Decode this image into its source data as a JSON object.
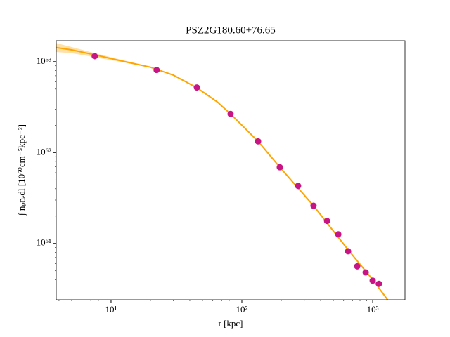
{
  "chart_data": {
    "type": "scatter",
    "title": "PSZ2G180.60+76.65",
    "x_label": "r [kpc]",
    "y_label": "∫ nₚnₑdl [10⁶⁰cm⁻⁵kpc⁻²]",
    "xscale": "log",
    "yscale": "log",
    "xlim": [
      3.81,
      1766
    ],
    "ylim": [
      2.4e+60,
      1.7e+63
    ],
    "xticks": [
      {
        "value": 10,
        "label": "10¹"
      },
      {
        "value": 100,
        "label": "10²"
      },
      {
        "value": 1000,
        "label": "10³"
      }
    ],
    "yticks": [
      {
        "value": 1e+61,
        "label": "10⁶¹"
      },
      {
        "value": 1e+62,
        "label": "10⁶²"
      },
      {
        "value": 1e+63,
        "label": "10⁶³"
      }
    ],
    "xminorticks": [
      4,
      5,
      6,
      7,
      8,
      9,
      20,
      30,
      40,
      50,
      60,
      70,
      80,
      90,
      200,
      300,
      400,
      500,
      600,
      700,
      800,
      900
    ],
    "yminorticks": [
      3e+60,
      4e+60,
      5e+60,
      6e+60,
      7e+60,
      8e+60,
      9e+60,
      2e+61,
      3e+61,
      4e+61,
      5e+61,
      6e+61,
      7e+61,
      8e+61,
      9e+61,
      2e+62,
      3e+62,
      4e+62,
      5e+62,
      6e+62,
      7e+62,
      8e+62,
      9e+62
    ],
    "band": {
      "color": "#ffa500",
      "opacity": 0.35,
      "x": [
        3.81,
        5,
        7.5,
        12,
        20,
        30
      ],
      "upper": [
        1.6e+63,
        1.45e+63,
        1.24e+63,
        1.05e+63,
        8.8e+62,
        7.2e+62
      ],
      "lower": [
        1.28e+63,
        1.24e+63,
        1.12e+63,
        9.9e+62,
        8.6e+62,
        7e+62
      ]
    },
    "series": [
      {
        "style": "line",
        "color": "#ffa500",
        "x": [
          3.81,
          5,
          7.5,
          12,
          20,
          30,
          45,
          65,
          82,
          133,
          195,
          353,
          649,
          1000,
          1300
        ],
        "values": [
          1.43e+63,
          1.35e+63,
          1.19e+63,
          1.02e+63,
          8.7e+62,
          7.1e+62,
          5.2e+62,
          3.6e+62,
          2.66e+62,
          1.33e+62,
          6.9e+61,
          2.6e+61,
          8.5e+60,
          4e+60,
          2.4e+60
        ]
      },
      {
        "style": "markers",
        "color": "#c71585",
        "x": [
          7.5,
          22.3,
          45.3,
          82,
          133,
          195,
          269,
          353,
          448,
          546,
          649,
          762,
          884,
          1000,
          1117
        ],
        "values": [
          1.15e+63,
          8.1e+62,
          5.2e+62,
          2.66e+62,
          1.33e+62,
          6.9e+61,
          4.3e+61,
          2.6e+61,
          1.77e+61,
          1.26e+61,
          8.2e+60,
          5.6e+60,
          4.8e+60,
          3.9e+60,
          3.6e+60
        ]
      }
    ]
  }
}
